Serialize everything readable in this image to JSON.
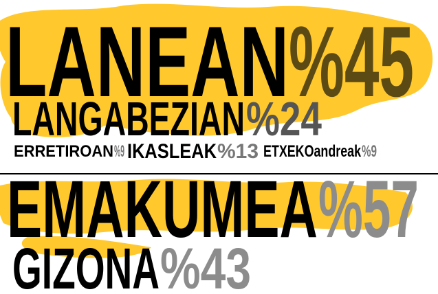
{
  "employment": [
    {
      "label": "LANEAN",
      "percent": "%45"
    },
    {
      "label": "LANGABEZIAN",
      "percent": "%24"
    },
    {
      "label": "ERRETIROAN",
      "percent": "%9"
    },
    {
      "label": "IKASLEAK",
      "percent": "%13"
    },
    {
      "label": "ETXEKOandreak",
      "percent": "%9"
    }
  ],
  "gender": [
    {
      "label": "EMAKUMEA",
      "percent": "%57"
    },
    {
      "label": "GIZONA",
      "percent": "%43"
    }
  ]
}
